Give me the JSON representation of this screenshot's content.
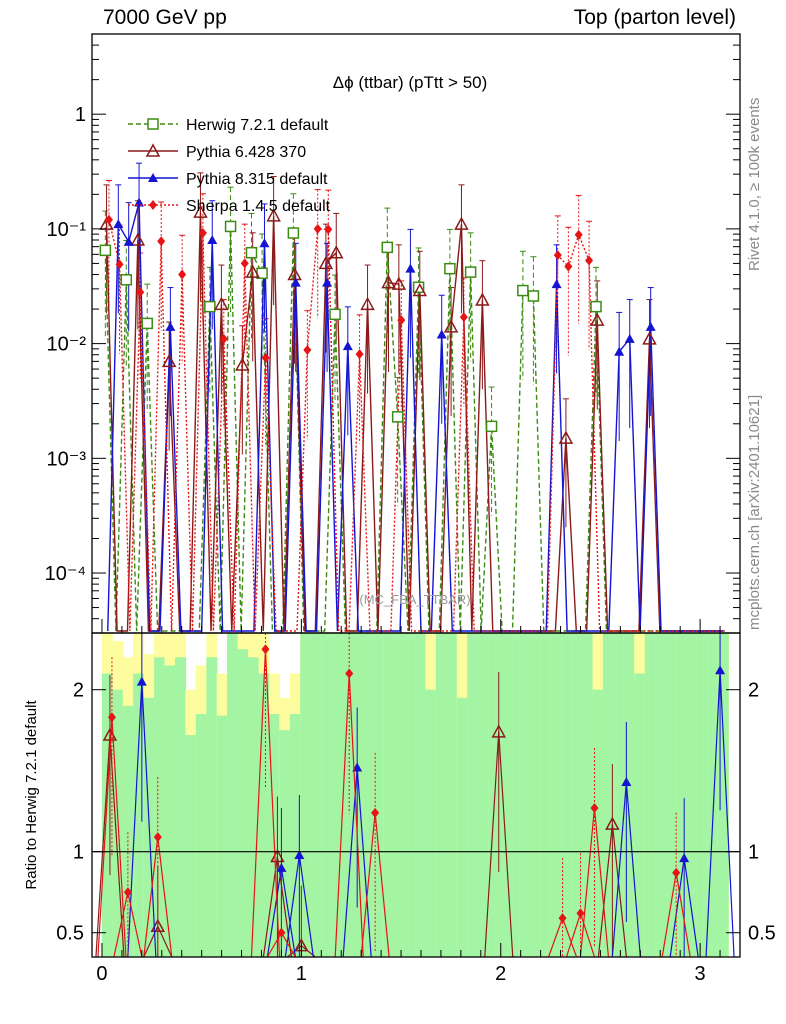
{
  "header": {
    "left": "7000 GeV pp",
    "right": "Top (parton level)"
  },
  "side_text": {
    "top": "Rivet 4.1.0, ≥ 100k events",
    "bottom": "mcplots.cern.ch [arXiv:2401.10621]"
  },
  "colors": {
    "herwig": "#3c8c14",
    "pythia6": "#8b1a1a",
    "pythia8": "#1414d2",
    "sherpa": "#e61414",
    "band_inner": "#a3f5a3",
    "band_outer": "#fdfda0"
  },
  "chart_data": [
    {
      "type": "line",
      "title": "Δϕ (ttbar) (pTtt > 50)",
      "watermark": "(MC_FBA_TTBAR)",
      "yscale": "log",
      "xlim": [
        -0.05,
        3.2
      ],
      "ylim": [
        3e-05,
        5
      ],
      "ytick_labels": [
        "10⁻⁴",
        "10⁻³",
        "10⁻²",
        "10⁻¹",
        "1"
      ],
      "legend": [
        "Herwig 7.2.1 default",
        "Pythia 6.428 370",
        "Pythia 8.315 default",
        "Sherpa 1.4.5 default"
      ],
      "x": [
        0.026,
        0.079,
        0.131,
        0.183,
        0.236,
        0.288,
        0.34,
        0.393,
        0.445,
        0.497,
        0.55,
        0.602,
        0.654,
        0.707,
        0.759,
        0.812,
        0.864,
        0.916,
        0.969,
        1.021,
        1.073,
        1.126,
        1.178,
        1.23,
        1.283,
        1.335,
        1.387,
        1.44,
        1.492,
        1.544,
        1.597,
        1.649,
        1.701,
        1.754,
        1.806,
        1.858,
        1.911,
        1.963,
        2.016,
        2.068,
        2.12,
        2.173,
        2.225,
        2.277,
        2.33,
        2.382,
        2.434,
        2.487,
        2.539,
        2.591,
        2.644,
        2.696,
        2.749,
        2.801,
        2.853,
        2.906,
        2.958,
        3.01,
        3.063,
        3.115
      ],
      "series": [
        {
          "name": "Herwig 7.2.1 default",
          "key": "herwig",
          "marker": "square-open",
          "dash": "5,3",
          "values": [
            0.065,
            0,
            0.036,
            0,
            0.015,
            0,
            0,
            0,
            0,
            0,
            0.021,
            0,
            0.105,
            0,
            0.062,
            0.041,
            0,
            0,
            0.092,
            0,
            0,
            0,
            0.018,
            0,
            0,
            0,
            0,
            0.069,
            0.0023,
            0,
            0.031,
            0,
            0,
            0.045,
            0,
            0.042,
            0,
            0.0019,
            0,
            0,
            0.029,
            0.026,
            0,
            0,
            0,
            0,
            0,
            0.021,
            0,
            0,
            0,
            0,
            0,
            0,
            0,
            0,
            0,
            0,
            0,
            0
          ]
        },
        {
          "name": "Pythia 6.428 370",
          "key": "pythia6",
          "marker": "triangle-open",
          "dash": "",
          "values": [
            0.11,
            0,
            0,
            0.08,
            0,
            0,
            0.007,
            0,
            0,
            0.14,
            0,
            0.022,
            0,
            0.0065,
            0.042,
            0,
            0.13,
            0,
            0.04,
            0,
            0,
            0.05,
            0.062,
            0,
            0,
            0.022,
            0,
            0.034,
            0.033,
            0,
            0.029,
            0,
            0,
            0.014,
            0.11,
            0,
            0.024,
            0,
            0,
            0,
            0,
            0,
            0,
            0,
            0.0015,
            0,
            0,
            0.016,
            0,
            0,
            0,
            0,
            0.011,
            0,
            0,
            0,
            0,
            0,
            0,
            0
          ]
        },
        {
          "name": "Pythia 8.315 default",
          "key": "pythia8",
          "marker": "triangle-filled",
          "dash": "",
          "values": [
            0,
            0.11,
            0.077,
            0.17,
            0,
            0,
            0.014,
            0,
            0,
            0,
            0.08,
            0,
            0,
            0,
            0,
            0.075,
            0,
            0,
            0.034,
            0,
            0,
            0.034,
            0,
            0.0095,
            0,
            0,
            0,
            0,
            0,
            0.045,
            0,
            0,
            0.012,
            0,
            0,
            0,
            0,
            0,
            0,
            0,
            0,
            0,
            0,
            0.033,
            0,
            0,
            0,
            0,
            0,
            0.0085,
            0.011,
            0,
            0.014,
            0,
            0,
            0,
            0,
            0,
            0,
            0
          ]
        },
        {
          "name": "Sherpa 1.4.5 default",
          "key": "sherpa",
          "marker": "diamond-filled",
          "dash": "2,2",
          "values": [
            0.12,
            0.049,
            0,
            0.028,
            0,
            0.078,
            0,
            0.04,
            0,
            0.092,
            0,
            0.011,
            0,
            0.05,
            0,
            0.0075,
            0,
            0,
            0,
            0.0088,
            0.1,
            0.099,
            0,
            0,
            0.0081,
            0,
            0,
            0,
            0.016,
            0,
            0,
            0,
            0,
            0,
            0.017,
            0,
            0,
            0,
            0,
            0,
            0,
            0,
            0,
            0.059,
            0.047,
            0.089,
            0.053,
            0,
            0,
            0,
            0,
            0,
            0,
            0,
            0,
            0,
            0,
            0,
            0,
            0
          ]
        }
      ]
    },
    {
      "type": "line",
      "ylabel": "Ratio to Herwig 7.2.1 default",
      "ylim": [
        0.35,
        2.35
      ],
      "xlim": [
        -0.05,
        3.2
      ],
      "xtick_labels": [
        "0",
        "1",
        "2",
        "3"
      ],
      "ytick_labels": [
        "0.5",
        "1",
        "2"
      ],
      "ratio_points": {
        "pythia6": [
          [
            0.04,
            1.72
          ],
          [
            0.28,
            0.54
          ],
          [
            0.88,
            0.97
          ],
          [
            1.0,
            0.42
          ],
          [
            1.99,
            1.74
          ],
          [
            2.56,
            1.17
          ]
        ],
        "pythia8": [
          [
            0.2,
            2.05
          ],
          [
            0.9,
            0.9
          ],
          [
            0.99,
            0.98
          ],
          [
            1.28,
            1.52
          ],
          [
            2.63,
            1.43
          ],
          [
            2.92,
            0.96
          ],
          [
            3.1,
            2.12
          ]
        ],
        "sherpa": [
          [
            0.05,
            1.83
          ],
          [
            0.13,
            0.75
          ],
          [
            0.28,
            1.09
          ],
          [
            0.82,
            2.25
          ],
          [
            0.9,
            0.5
          ],
          [
            1.24,
            2.1
          ],
          [
            1.37,
            1.24
          ],
          [
            2.31,
            0.59
          ],
          [
            2.4,
            0.62
          ],
          [
            2.47,
            1.27
          ],
          [
            2.88,
            0.87
          ]
        ]
      },
      "band_outer": [
        2.35,
        2.3,
        2.2,
        2.35,
        2.22,
        2.35,
        2.35,
        2.35,
        2.0,
        2.15,
        2.35,
        2.1,
        2.35,
        2.35,
        2.35,
        2.35,
        2.1,
        1.95,
        2.1,
        2.35,
        2.35,
        2.35,
        2.35,
        2.35,
        2.35,
        2.35,
        2.35,
        2.35,
        2.35,
        2.35,
        2.35,
        2.35,
        2.35,
        2.35,
        2.35,
        2.35,
        2.35,
        2.35,
        2.35,
        2.35,
        2.35,
        2.35,
        2.35,
        2.35,
        2.35,
        2.35,
        2.35,
        2.35,
        2.35,
        2.35,
        2.35,
        2.35,
        2.35,
        2.35,
        2.35,
        2.35,
        2.35,
        2.35,
        2.35,
        2.35
      ],
      "band_inner": [
        2.1,
        2.0,
        1.9,
        2.1,
        1.95,
        2.2,
        2.15,
        2.2,
        1.72,
        1.85,
        2.2,
        1.84,
        2.35,
        2.25,
        2.2,
        2.1,
        1.85,
        1.75,
        1.85,
        2.35,
        2.35,
        2.35,
        2.35,
        2.35,
        2.35,
        2.35,
        2.35,
        2.35,
        2.35,
        2.35,
        2.35,
        2.0,
        2.35,
        2.35,
        1.95,
        2.35,
        2.35,
        2.35,
        2.35,
        2.35,
        2.35,
        2.35,
        2.35,
        2.35,
        2.35,
        2.35,
        2.35,
        2.0,
        2.35,
        2.35,
        2.35,
        2.1,
        2.35,
        2.35,
        2.35,
        2.35,
        2.35,
        2.35,
        2.35,
        2.35
      ]
    }
  ]
}
